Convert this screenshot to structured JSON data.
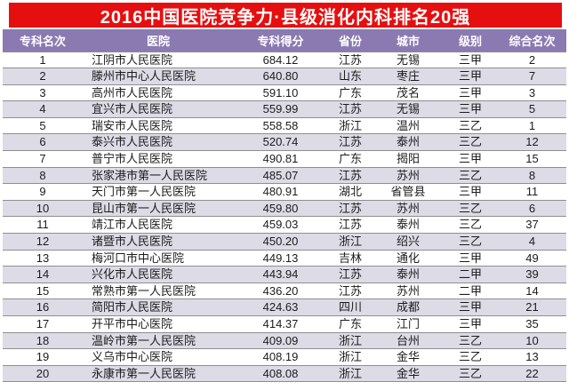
{
  "title": "2016中国医院竞争力·县级消化内科排名20强",
  "colors": {
    "title_bar_bg": "#e60f10",
    "title_text": "#ffffff",
    "header_bg": "#8a7ab1",
    "header_text": "#ffffff",
    "stripe_bg": "#dcdbe6",
    "row_border": "#8f8f8f",
    "body_text": "#1c1c1c"
  },
  "chart_data": {
    "type": "table",
    "title": "2016中国医院竞争力·县级消化内科排名20强",
    "columns": [
      "专科名次",
      "医院",
      "专科得分",
      "省份",
      "城市",
      "级别",
      "综合名次"
    ],
    "rows": [
      [
        "1",
        "江阴市人民医院",
        "684.12",
        "江苏",
        "无锡",
        "三甲",
        "2"
      ],
      [
        "2",
        "滕州市中心人民医院",
        "640.80",
        "山东",
        "枣庄",
        "三甲",
        "7"
      ],
      [
        "3",
        "高州市人民医院",
        "591.10",
        "广东",
        "茂名",
        "三甲",
        "3"
      ],
      [
        "4",
        "宜兴市人民医院",
        "559.99",
        "江苏",
        "无锡",
        "三甲",
        "5"
      ],
      [
        "5",
        "瑞安市人民医院",
        "558.58",
        "浙江",
        "温州",
        "三乙",
        "1"
      ],
      [
        "6",
        "泰兴市人民医院",
        "520.74",
        "江苏",
        "泰州",
        "三乙",
        "12"
      ],
      [
        "7",
        "普宁市人民医院",
        "490.81",
        "广东",
        "揭阳",
        "三甲",
        "15"
      ],
      [
        "8",
        "张家港市第一人民医院",
        "485.07",
        "江苏",
        "苏州",
        "三乙",
        "8"
      ],
      [
        "9",
        "天门市第一人民医院",
        "480.91",
        "湖北",
        "省管县",
        "三甲",
        "11"
      ],
      [
        "10",
        "昆山市第一人民医院",
        "459.80",
        "江苏",
        "苏州",
        "三乙",
        "6"
      ],
      [
        "11",
        "靖江市人民医院",
        "459.03",
        "江苏",
        "泰州",
        "三乙",
        "37"
      ],
      [
        "12",
        "诸暨市人民医院",
        "450.20",
        "浙江",
        "绍兴",
        "三乙",
        "4"
      ],
      [
        "13",
        "梅河口市中心医院",
        "449.13",
        "吉林",
        "通化",
        "三甲",
        "49"
      ],
      [
        "14",
        "兴化市人民医院",
        "443.94",
        "江苏",
        "泰州",
        "二甲",
        "39"
      ],
      [
        "15",
        "常熟市第一人民医院",
        "436.20",
        "江苏",
        "苏州",
        "二甲",
        "14"
      ],
      [
        "16",
        "简阳市人民医院",
        "424.63",
        "四川",
        "成都",
        "三甲",
        "21"
      ],
      [
        "17",
        "开平市中心医院",
        "414.37",
        "广东",
        "江门",
        "三甲",
        "35"
      ],
      [
        "18",
        "温岭市第一人民医院",
        "409.09",
        "浙江",
        "台州",
        "三乙",
        "10"
      ],
      [
        "19",
        "义乌市中心医院",
        "408.19",
        "浙江",
        "金华",
        "三乙",
        "13"
      ],
      [
        "20",
        "永康市第一人民医院",
        "408.08",
        "浙江",
        "金华",
        "三乙",
        "22"
      ]
    ]
  }
}
